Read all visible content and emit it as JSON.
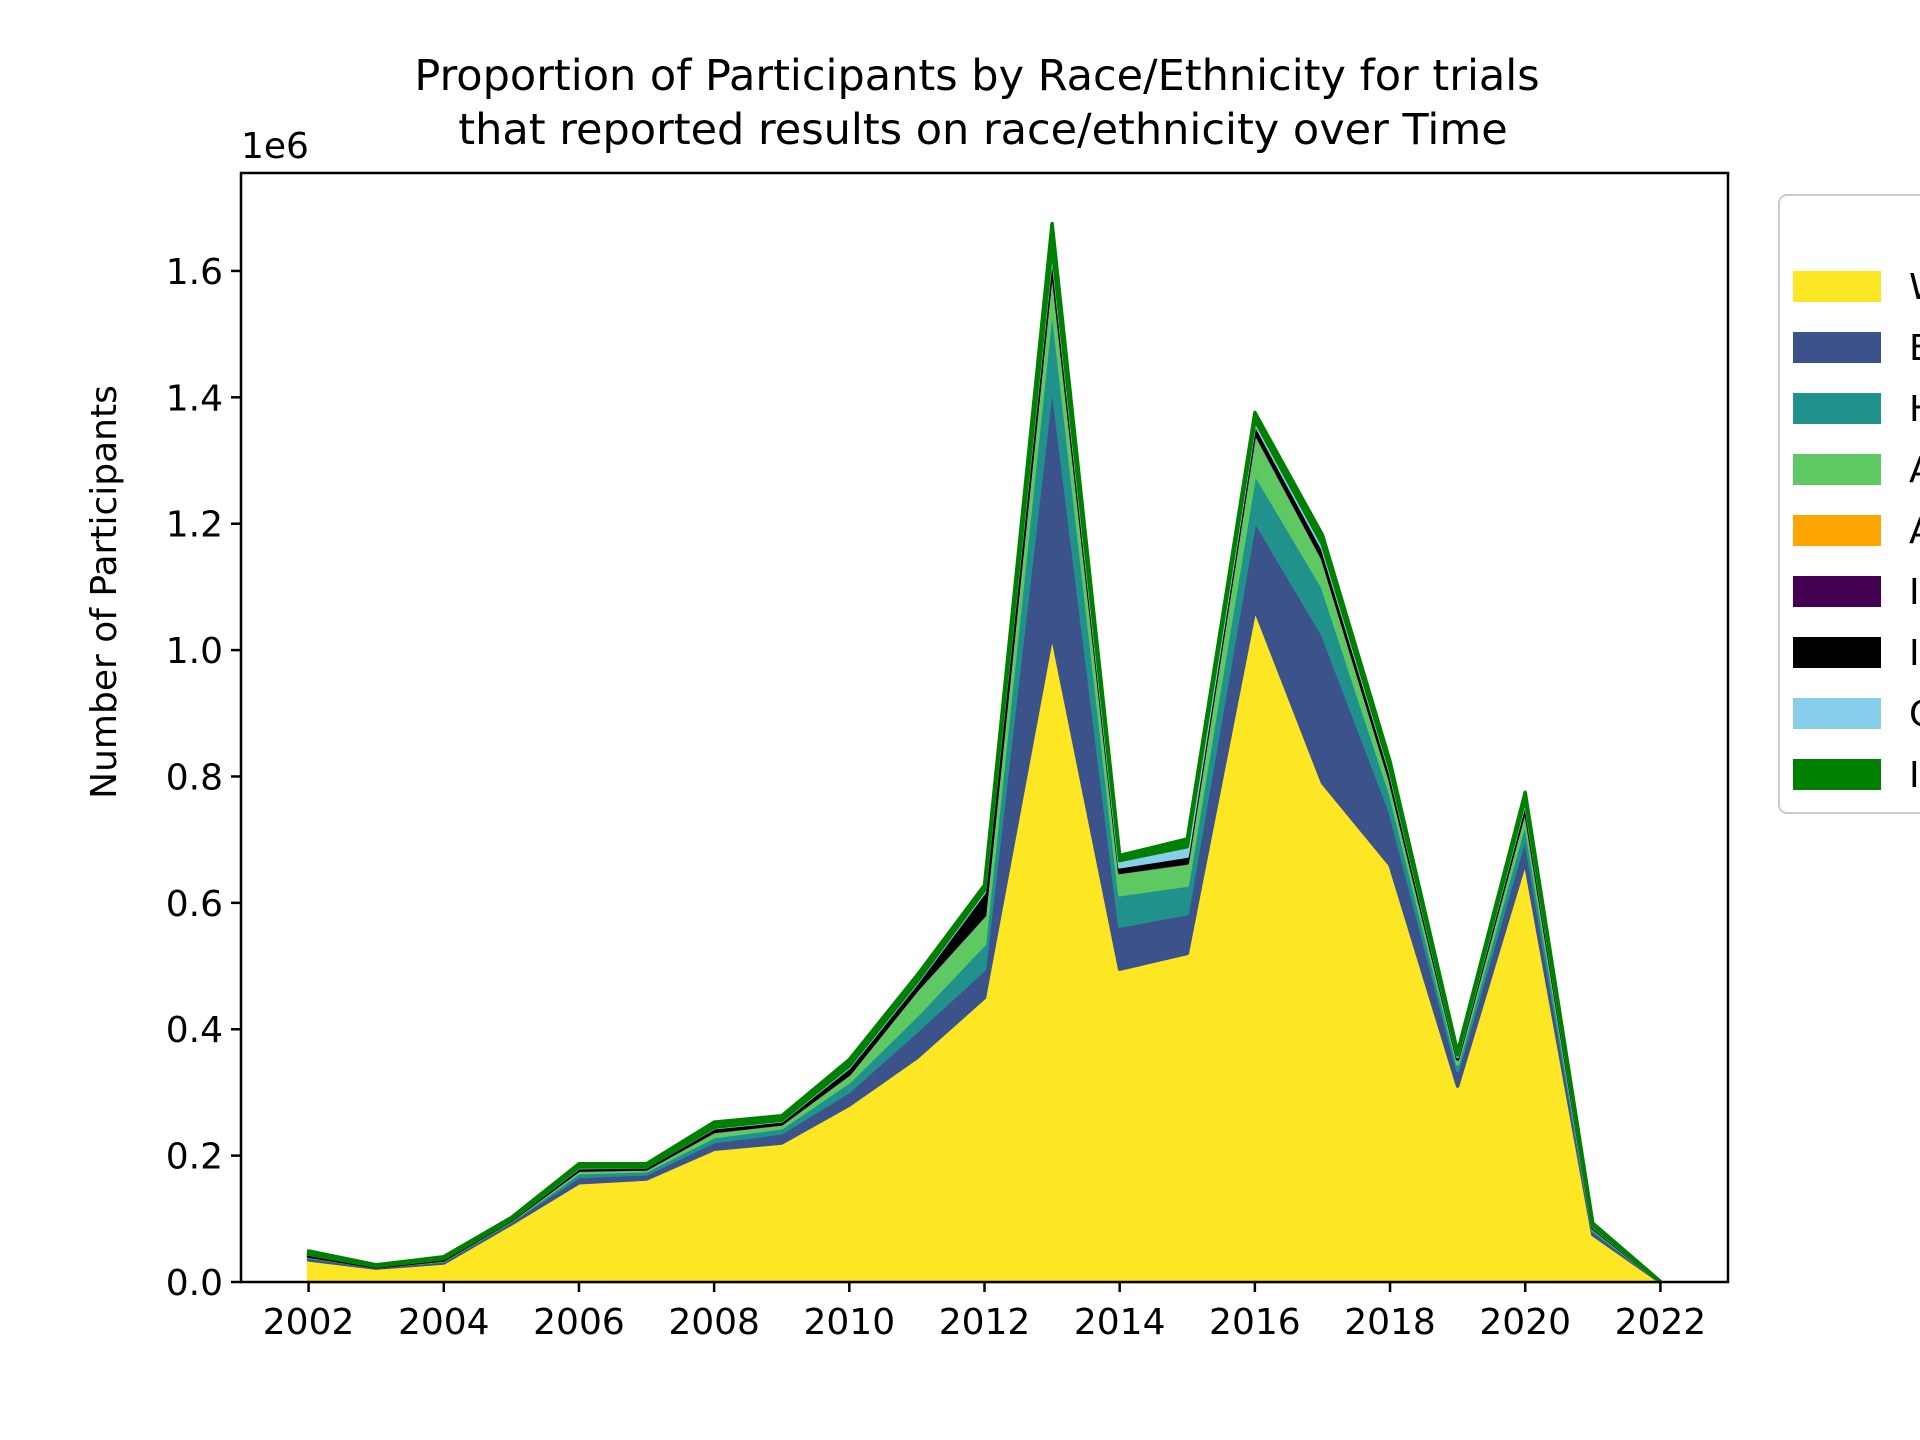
{
  "chart_data": {
    "type": "area",
    "stacked": true,
    "title_line1": "Proportion of Participants by Race/Ethnicity for trials",
    "title_line2": "that reported results on race/ethnicity over Time",
    "xlabel": "",
    "ylabel": "Number of Participants",
    "y_scale_label": "1e6",
    "xlim": [
      2001,
      2023
    ],
    "ylim": [
      0,
      1.755
    ],
    "y_scale": 1000000,
    "x_ticks": [
      2002,
      2004,
      2006,
      2008,
      2010,
      2012,
      2014,
      2016,
      2018,
      2020,
      2022
    ],
    "y_ticks": [
      0.0,
      0.2,
      0.4,
      0.6,
      0.8,
      1.0,
      1.2,
      1.4,
      1.6
    ],
    "y_tick_labels": [
      "0.0",
      "0.2",
      "0.4",
      "0.6",
      "0.8",
      "1.0",
      "1.2",
      "1.4",
      "1.6"
    ],
    "grid": false,
    "legend_position": "right, outside plot (cut off)",
    "x": [
      2002,
      2003,
      2004,
      2005,
      2006,
      2007,
      2008,
      2009,
      2010,
      2011,
      2012,
      2013,
      2014,
      2015,
      2016,
      2017,
      2018,
      2019,
      2020,
      2021,
      2022
    ],
    "series": [
      {
        "label": "W",
        "color": "#fde725",
        "values": [
          0.035,
          0.022,
          0.03,
          0.092,
          0.157,
          0.163,
          0.21,
          0.22,
          0.28,
          0.355,
          0.45,
          1.025,
          0.495,
          0.52,
          1.065,
          0.79,
          0.66,
          0.31,
          0.665,
          0.075,
          0.0
        ]
      },
      {
        "label": "B",
        "color": "#3b528b",
        "values": [
          0.004,
          0.002,
          0.003,
          0.004,
          0.01,
          0.008,
          0.012,
          0.016,
          0.022,
          0.042,
          0.045,
          0.4,
          0.068,
          0.063,
          0.14,
          0.235,
          0.085,
          0.025,
          0.04,
          0.006,
          0.0
        ]
      },
      {
        "label": "H",
        "color": "#21918c",
        "values": [
          0.001,
          0.0,
          0.001,
          0.001,
          0.006,
          0.005,
          0.008,
          0.008,
          0.015,
          0.025,
          0.04,
          0.125,
          0.05,
          0.045,
          0.075,
          0.075,
          0.03,
          0.01,
          0.025,
          0.003,
          0.0
        ]
      },
      {
        "label": "A",
        "color": "#5ec962",
        "values": [
          0.001,
          0.0,
          0.001,
          0.001,
          0.004,
          0.003,
          0.008,
          0.006,
          0.012,
          0.04,
          0.045,
          0.06,
          0.035,
          0.035,
          0.065,
          0.045,
          0.02,
          0.008,
          0.02,
          0.002,
          0.0
        ]
      },
      {
        "label": "A",
        "color": "#ffa500",
        "values": [
          0.0,
          0.0,
          0.0,
          0.0,
          0.0,
          0.0,
          0.0,
          0.0,
          0.0,
          0.0,
          0.0,
          0.0,
          0.0,
          0.0,
          0.0,
          0.0,
          0.0,
          0.0,
          0.0,
          0.0,
          0.0
        ]
      },
      {
        "label": "I",
        "color": "#440154",
        "values": [
          0.0,
          0.0,
          0.0,
          0.0,
          0.001,
          0.0,
          0.001,
          0.001,
          0.001,
          0.001,
          0.002,
          0.002,
          0.001,
          0.001,
          0.002,
          0.001,
          0.001,
          0.0,
          0.001,
          0.0,
          0.0
        ]
      },
      {
        "label": "I",
        "color": "#000000",
        "values": [
          0.003,
          0.001,
          0.002,
          0.001,
          0.003,
          0.003,
          0.005,
          0.004,
          0.01,
          0.01,
          0.035,
          0.02,
          0.008,
          0.01,
          0.012,
          0.015,
          0.012,
          0.004,
          0.01,
          0.002,
          0.0
        ]
      },
      {
        "label": "C",
        "color": "#87ceeb",
        "values": [
          0.0,
          0.0,
          0.0,
          0.0,
          0.001,
          0.0,
          0.001,
          0.001,
          0.002,
          0.002,
          0.003,
          0.008,
          0.01,
          0.015,
          0.005,
          0.006,
          0.004,
          0.002,
          0.004,
          0.001,
          0.0
        ]
      },
      {
        "label": "I",
        "color": "#008000",
        "values": [
          0.005,
          0.002,
          0.003,
          0.003,
          0.005,
          0.005,
          0.008,
          0.007,
          0.01,
          0.01,
          0.008,
          0.035,
          0.008,
          0.012,
          0.012,
          0.015,
          0.012,
          0.005,
          0.01,
          0.004,
          0.001
        ]
      }
    ]
  }
}
